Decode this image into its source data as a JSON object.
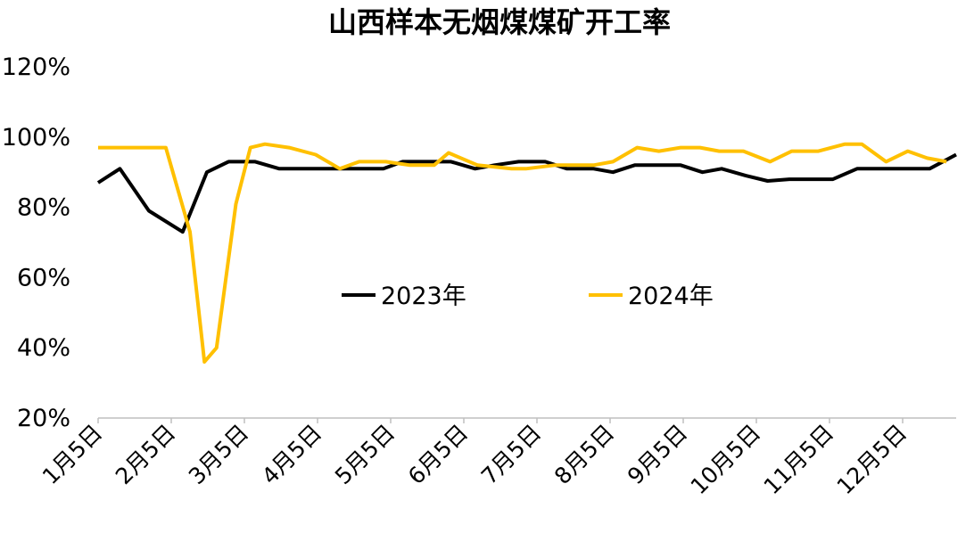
{
  "chart_data": {
    "type": "line",
    "title": "山西样本无烟煤煤矿开工率",
    "xlabel": "",
    "ylabel": "",
    "ylim": [
      20,
      120
    ],
    "y_ticks": [
      "20%",
      "40%",
      "60%",
      "80%",
      "100%",
      "120%"
    ],
    "x_ticks": [
      "1月5日",
      "2月5日",
      "3月5日",
      "4月5日",
      "5月5日",
      "6月5日",
      "7月5日",
      "8月5日",
      "9月5日",
      "10月5日",
      "11月5日",
      "12月5日"
    ],
    "grid": false,
    "legend": "center",
    "colors": {
      "2023年": "#000000",
      "2024年": "#FFC000"
    },
    "series": [
      {
        "name": "2023年",
        "x": [
          5,
          14,
          26,
          40,
          50,
          59,
          70,
          80,
          89,
          100,
          109,
          123,
          131,
          141,
          151,
          161,
          169,
          179,
          190,
          199,
          210,
          218,
          227,
          236,
          246,
          255,
          263,
          273,
          282,
          291,
          300,
          309,
          319,
          330,
          339,
          349,
          360
        ],
        "y": [
          87,
          91,
          79,
          73,
          90,
          93,
          93,
          91,
          91,
          91,
          91,
          91,
          93,
          93,
          93,
          91,
          92,
          93,
          93,
          91,
          91,
          90,
          92,
          92,
          92,
          90,
          91,
          89,
          87.5,
          88,
          88,
          88,
          91,
          91,
          91,
          91,
          95
        ]
      },
      {
        "name": "2024年",
        "x": [
          5,
          14,
          24,
          33,
          43,
          49,
          54,
          62,
          68,
          74,
          84,
          95,
          105,
          113,
          124,
          134,
          144,
          150,
          162,
          176,
          182,
          194,
          210,
          218,
          228,
          237,
          246,
          254,
          262,
          272,
          283,
          292,
          303,
          314,
          321,
          331,
          340,
          348,
          356
        ],
        "y": [
          97,
          97,
          97,
          97,
          73,
          36,
          40,
          81,
          97,
          98,
          97,
          95,
          91,
          93,
          93,
          92,
          92,
          95.5,
          92,
          91,
          91,
          92,
          92,
          93,
          97,
          96,
          97,
          97,
          96,
          96,
          93,
          96,
          96,
          98,
          98,
          93,
          96,
          94,
          93
        ]
      }
    ]
  }
}
